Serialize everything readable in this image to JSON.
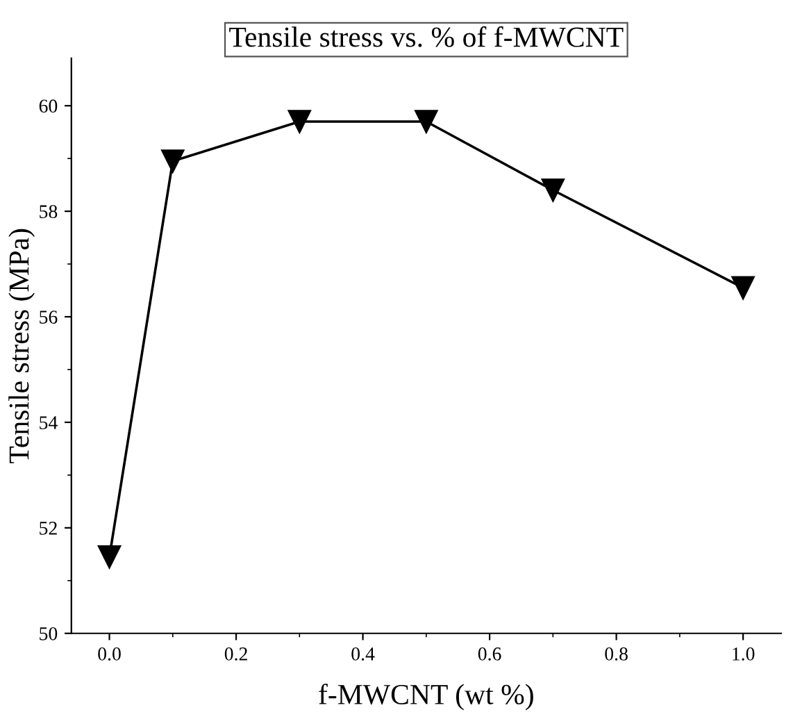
{
  "chart_data": {
    "type": "line",
    "title": "Tensile stress vs. % of f-MWCNT",
    "xlabel": "f-MWCNT (wt %)",
    "ylabel": "Tensile stress (MPa)",
    "x": [
      0.0,
      0.1,
      0.3,
      0.5,
      0.7,
      1.0
    ],
    "series": [
      {
        "color": "#000000",
        "values": [
          51.45,
          58.95,
          59.7,
          59.7,
          58.4,
          56.55
        ]
      }
    ],
    "xlim": [
      -0.06,
      1.06
    ],
    "ylim": [
      50,
      60.9
    ],
    "xticks": [
      {
        "value": 0.0,
        "label": "0.0"
      },
      {
        "value": 0.2,
        "label": "0.2"
      },
      {
        "value": 0.4,
        "label": "0.4"
      },
      {
        "value": 0.6,
        "label": "0.6"
      },
      {
        "value": 0.8,
        "label": "0.8"
      },
      {
        "value": 1.0,
        "label": "1.0"
      }
    ],
    "yticks": [
      50,
      52,
      54,
      56,
      58,
      60
    ],
    "marker": "triangle_down",
    "line_style": "solid",
    "grid": false,
    "legend": false
  }
}
